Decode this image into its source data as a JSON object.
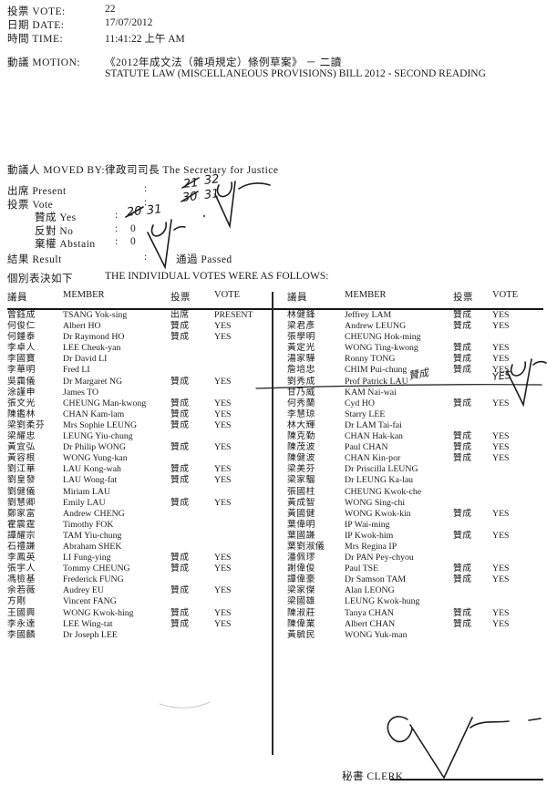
{
  "header": {
    "vote_label": "投票 VOTE:",
    "vote_value": "22",
    "date_label": "日期 DATE:",
    "date_value": "17/07/2012",
    "time_label": "時間 TIME:",
    "time_value": "11:41:22 上午 AM",
    "motion_label": "動議 MOTION:",
    "motion_line1": "《2012年成文法（雜項規定）條例草案》 － 二讀",
    "motion_line2": "STATUTE LAW (MISCELLANEOUS PROVISIONS) BILL 2012 - SECOND READING"
  },
  "summary": {
    "moved_by_label": "動議人 MOVED BY:",
    "moved_by_value": "律政司司長  The Secretary for Justice",
    "present_label": "出席 Present",
    "vote_label": "投票 Vote",
    "yes_label": "贊成 Yes",
    "no_label": "反對 No",
    "abstain_label": "棄權 Abstain",
    "result_label": "結果 Result",
    "colon": ":",
    "no_value": "0",
    "abstain_value": "0",
    "result_value": "通過 Passed"
  },
  "handwritten": {
    "present_crossed": "21",
    "present_corrected": "32",
    "vote_crossed": "30",
    "vote_corrected": "31",
    "yes_crossed": "20",
    "yes_corrected": "31",
    "patrick_lau_vote_cn": "贊成",
    "patrick_lau_vote_en": "YES"
  },
  "individual": {
    "title_cn": "個別表決如下",
    "title_en": "THE INDIVIDUAL VOTES WERE AS FOLLOWS:"
  },
  "table": {
    "headers": {
      "member_cn": "議員",
      "member_en": "MEMBER",
      "vote_cn": "投票",
      "vote_en": "VOTE"
    },
    "left_rows": [
      [
        "曾鈺成",
        "TSANG Yok-sing",
        "出席",
        "PRESENT"
      ],
      [
        "何俊仁",
        "Albert HO",
        "贊成",
        "YES"
      ],
      [
        "何鍾泰",
        "Dr Raymond HO",
        "贊成",
        "YES"
      ],
      [
        "李卓人",
        "LEE Cheuk-yan",
        "",
        ""
      ],
      [
        "李國寶",
        "Dr David LI",
        "",
        ""
      ],
      [
        "李華明",
        "Fred LI",
        "",
        ""
      ],
      [
        "吳靄儀",
        "Dr Margaret NG",
        "贊成",
        "YES"
      ],
      [
        "涂謹申",
        "James TO",
        "",
        ""
      ],
      [
        "張文光",
        "CHEUNG Man-kwong",
        "贊成",
        "YES"
      ],
      [
        "陳鑑林",
        "CHAN Kam-lam",
        "贊成",
        "YES"
      ],
      [
        "梁劉柔芬",
        "Mrs Sophie LEUNG",
        "贊成",
        "YES"
      ],
      [
        "梁耀忠",
        "LEUNG Yiu-chung",
        "",
        ""
      ],
      [
        "黃宜弘",
        "Dr Philip WONG",
        "贊成",
        "YES"
      ],
      [
        "黃容根",
        "WONG Yung-kan",
        "",
        ""
      ],
      [
        "劉江華",
        "LAU Kong-wah",
        "贊成",
        "YES"
      ],
      [
        "劉皇發",
        "LAU Wong-fat",
        "贊成",
        "YES"
      ],
      [
        "劉健儀",
        "Miriam LAU",
        "",
        ""
      ],
      [
        "劉慧卿",
        "Emily LAU",
        "贊成",
        "YES"
      ],
      [
        "鄭家富",
        "Andrew CHENG",
        "",
        ""
      ],
      [
        "霍震霆",
        "Timothy FOK",
        "",
        ""
      ],
      [
        "譚耀宗",
        "TAM Yiu-chung",
        "",
        ""
      ],
      [
        "石禮謙",
        "Abraham SHEK",
        "",
        ""
      ],
      [
        "李鳳英",
        "LI Fung-ying",
        "贊成",
        "YES"
      ],
      [
        "張宇人",
        "Tommy CHEUNG",
        "贊成",
        "YES"
      ],
      [
        "馮檢基",
        "Frederick FUNG",
        "",
        ""
      ],
      [
        "余若薇",
        "Audrey EU",
        "贊成",
        "YES"
      ],
      [
        "方剛",
        "Vincent FANG",
        "",
        ""
      ],
      [
        "王國興",
        "WONG Kwok-hing",
        "贊成",
        "YES"
      ],
      [
        "李永達",
        "LEE Wing-tat",
        "贊成",
        "YES"
      ],
      [
        "李國麟",
        "Dr Joseph LEE",
        "",
        ""
      ]
    ],
    "right_rows": [
      [
        "林健鋒",
        "Jeffrey LAM",
        "贊成",
        "YES"
      ],
      [
        "梁君彥",
        "Andrew LEUNG",
        "贊成",
        "YES"
      ],
      [
        "張學明",
        "CHEUNG Hok-ming",
        "",
        ""
      ],
      [
        "黃定光",
        "WONG Ting-kwong",
        "贊成",
        "YES"
      ],
      [
        "湯家驊",
        "Ronny TONG",
        "贊成",
        "YES"
      ],
      [
        "詹培忠",
        "CHIM Pui-chung",
        "贊成",
        "YES"
      ],
      [
        "劉秀成",
        "Prof Patrick LAU",
        "",
        ""
      ],
      [
        "甘乃威",
        "KAM Nai-wai",
        "",
        ""
      ],
      [
        "何秀蘭",
        "Cyd HO",
        "贊成",
        "YES"
      ],
      [
        "李慧琼",
        "Starry LEE",
        "",
        ""
      ],
      [
        "林大輝",
        "Dr LAM Tai-fai",
        "",
        ""
      ],
      [
        "陳克勤",
        "CHAN Hak-kan",
        "贊成",
        "YES"
      ],
      [
        "陳茂波",
        "Paul CHAN",
        "贊成",
        "YES"
      ],
      [
        "陳健波",
        "CHAN Kin-por",
        "贊成",
        "YES"
      ],
      [
        "梁美芬",
        "Dr Priscilla LEUNG",
        "",
        ""
      ],
      [
        "梁家騮",
        "Dr LEUNG Ka-lau",
        "",
        ""
      ],
      [
        "張國柱",
        "CHEUNG Kwok-che",
        "",
        ""
      ],
      [
        "黃成智",
        "WONG Sing-chi",
        "",
        ""
      ],
      [
        "黃國健",
        "WONG Kwok-kin",
        "贊成",
        "YES"
      ],
      [
        "葉偉明",
        "IP Wai-ming",
        "",
        ""
      ],
      [
        "葉國謙",
        "IP Kwok-him",
        "贊成",
        "YES"
      ],
      [
        "葉劉淑儀",
        "Mrs Regina IP",
        "",
        ""
      ],
      [
        "潘佩璆",
        "Dr PAN Pey-chyou",
        "",
        ""
      ],
      [
        "謝偉俊",
        "Paul TSE",
        "贊成",
        "YES"
      ],
      [
        "譚偉豪",
        "Dr Samson TAM",
        "贊成",
        "YES"
      ],
      [
        "梁家傑",
        "Alan LEONG",
        "",
        ""
      ],
      [
        "梁國雄",
        "LEUNG Kwok-hung",
        "",
        ""
      ],
      [
        "陳淑莊",
        "Tanya CHAN",
        "贊成",
        "YES"
      ],
      [
        "陳偉業",
        "Albert CHAN",
        "贊成",
        "YES"
      ],
      [
        "黃毓民",
        "WONG Yuk-man",
        "",
        ""
      ]
    ]
  },
  "clerk": {
    "label": "秘書 CLERK"
  }
}
